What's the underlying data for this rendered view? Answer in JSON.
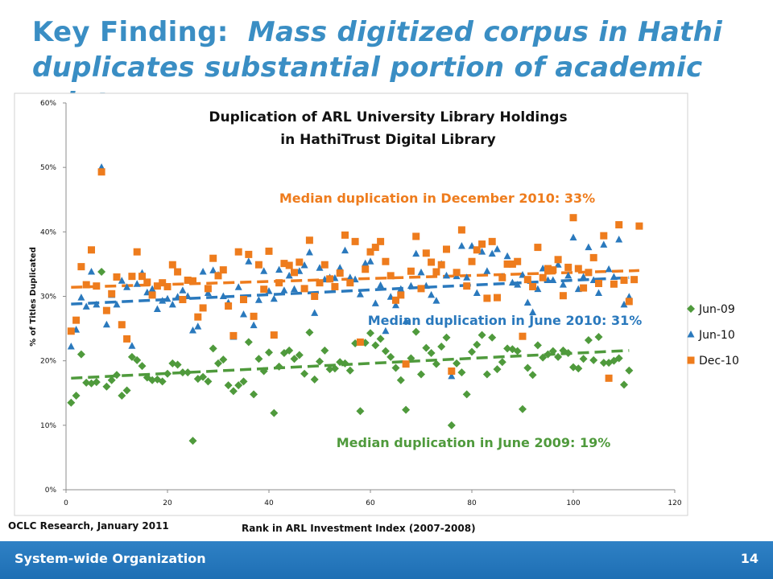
{
  "slide": {
    "title_main": "Key Finding:",
    "title_sub": "Mass digitized corpus in Hathi duplicates substantial portion of academic print",
    "source_note": "OCLC Research, January 2011",
    "footer_label": "System-wide Organization",
    "page_number": "14"
  },
  "colors": {
    "title": "#3a8ec4",
    "jun09": "#4f9a3c",
    "jun10": "#2a79bd",
    "dec10": "#ee7c1d",
    "footer": "#2278bd"
  },
  "chart_data": {
    "type": "scatter",
    "title_lines": [
      "Duplication of ARL University Library Holdings",
      "in HathiTrust Digital Library"
    ],
    "xlabel": "Rank in ARL Investment Index (2007-2008)",
    "ylabel": "% of Titles Duplicated",
    "xlim": [
      0,
      120
    ],
    "ylim": [
      0,
      60
    ],
    "x_ticks": [
      "0",
      "20",
      "40",
      "60",
      "80",
      "100",
      "120"
    ],
    "y_ticks": [
      "0%",
      "10%",
      "20%",
      "30%",
      "40%",
      "50%",
      "60%"
    ],
    "legend_position": "right",
    "annotations": {
      "dec10": "Median duplication in December 2010:  33%",
      "jun10": "Median duplication in June 2010:  31%",
      "jun09": "Median duplication in June 2009:  19%"
    },
    "series": [
      {
        "name": "Jun-09",
        "key": "jun09",
        "marker": "diamond",
        "trend": [
          17.3,
          21.6
        ],
        "y": [
          13.5,
          14.6,
          21,
          16.6,
          16.5,
          16.7,
          33.8,
          16,
          17,
          17.8,
          14.6,
          15.4,
          20.6,
          20.1,
          19.2,
          17.4,
          17,
          17.1,
          16.8,
          18,
          19.6,
          19.4,
          18.2,
          18.2,
          7.6,
          17.2,
          17.5,
          16.8,
          21.9,
          19.6,
          20.2,
          16.2,
          15.3,
          16.2,
          16.8,
          22.9,
          14.8,
          20.3,
          18.4,
          21.3,
          11.9,
          19.1,
          21.2,
          21.6,
          20.3,
          20.9,
          18,
          24.4,
          17.1,
          19.9,
          21.6,
          18.7,
          18.8,
          19.8,
          19.6,
          18.5,
          22.7,
          12.2,
          22.8,
          24.3,
          22.4,
          23.4,
          21.5,
          20.6,
          18.9,
          17,
          12.4,
          20.4,
          24.5,
          17.9,
          22,
          21.2,
          19.5,
          22.2,
          23.6,
          10,
          19.6,
          18.2,
          14.8,
          21.4,
          22.5,
          24,
          17.9,
          23.6,
          18.7,
          19.8,
          21.9,
          21.8,
          21.5,
          12.5,
          18.9,
          17.8,
          22.4,
          20.5,
          21,
          21.5,
          20.6,
          21.6,
          21.2,
          19,
          18.8,
          20.3,
          23.2,
          20.1,
          23.7,
          19.7,
          19.7,
          20,
          20.4,
          16.3,
          18.5
        ]
      },
      {
        "name": "Jun-10",
        "key": "jun10",
        "marker": "triangle",
        "trend": [
          28.8,
          32.9
        ],
        "y": [
          22.2,
          24.8,
          29.8,
          28.4,
          33.8,
          28.7,
          50,
          25.6,
          30.2,
          28.7,
          32.4,
          31.4,
          22.3,
          31.9,
          33.6,
          30.6,
          31.1,
          28,
          29.3,
          29.6,
          28.7,
          29.9,
          30.9,
          30,
          24.7,
          25.3,
          33.8,
          30.5,
          34,
          33.3,
          30,
          29,
          23.7,
          31.4,
          27.2,
          35.4,
          25.5,
          29.4,
          33.9,
          30.8,
          29.6,
          34.1,
          30.9,
          33.2,
          31.1,
          33.9,
          34.8,
          36.8,
          27.4,
          34.4,
          32.6,
          32.9,
          32.8,
          34.4,
          37.1,
          32.9,
          32.6,
          30.3,
          35.1,
          35.4,
          28.9,
          31.7,
          24.6,
          29.9,
          28.6,
          31.1,
          26.1,
          31.6,
          36.6,
          33.7,
          31.6,
          30.2,
          29.3,
          35,
          33.2,
          17.6,
          33.1,
          37.8,
          32.9,
          37.8,
          30.5,
          36.9,
          33.9,
          36.6,
          37.3,
          33,
          36.2,
          32.1,
          31.8,
          33.3,
          29,
          27.5,
          31.1,
          34.3,
          32.5,
          32.5,
          34.9,
          31.8,
          33.2,
          39.1,
          31.1,
          33,
          37.6,
          32.5,
          30.5,
          38,
          34.2,
          33,
          38.8,
          28.7,
          29.9
        ]
      },
      {
        "name": "Dec-10",
        "key": "dec10",
        "marker": "square",
        "trend": [
          31.4,
          34.0
        ],
        "y": [
          24.6,
          26.3,
          34.6,
          31.8,
          37.2,
          31.6,
          49.3,
          27.8,
          30.4,
          33,
          25.6,
          23.4,
          33.1,
          36.9,
          33.1,
          32.2,
          30.2,
          31.6,
          32.1,
          31.5,
          34.9,
          33.8,
          29.5,
          32.5,
          32.4,
          26.8,
          28.2,
          31.2,
          35.9,
          33.2,
          34.1,
          28.5,
          23.9,
          36.9,
          29.5,
          36.5,
          26.9,
          34.9,
          31.1,
          37,
          24,
          32.1,
          35.1,
          34.8,
          33.7,
          35.3,
          31.2,
          38.7,
          30,
          32.1,
          34.9,
          32.7,
          31.5,
          33.6,
          39.5,
          32.1,
          38.5,
          22.9,
          34.2,
          36.9,
          37.6,
          38.5,
          35.4,
          33.2,
          29.4,
          30.2,
          19.5,
          33.9,
          39.3,
          31.2,
          36.7,
          35.3,
          33.8,
          34.9,
          37.3,
          18.4,
          33.7,
          40.3,
          31.6,
          35.4,
          37.2,
          38.1,
          29.7,
          38.5,
          29.8,
          32.9,
          35,
          35,
          35.4,
          23.8,
          32.6,
          31.5,
          37.6,
          32.9,
          34.3,
          34.1,
          35.7,
          30.1,
          34.5,
          42.2,
          34.3,
          31.3,
          33.7,
          36,
          32,
          39.4,
          17.3,
          31.9,
          41.1,
          32.5,
          29.2,
          32.6,
          40.9
        ]
      }
    ]
  }
}
